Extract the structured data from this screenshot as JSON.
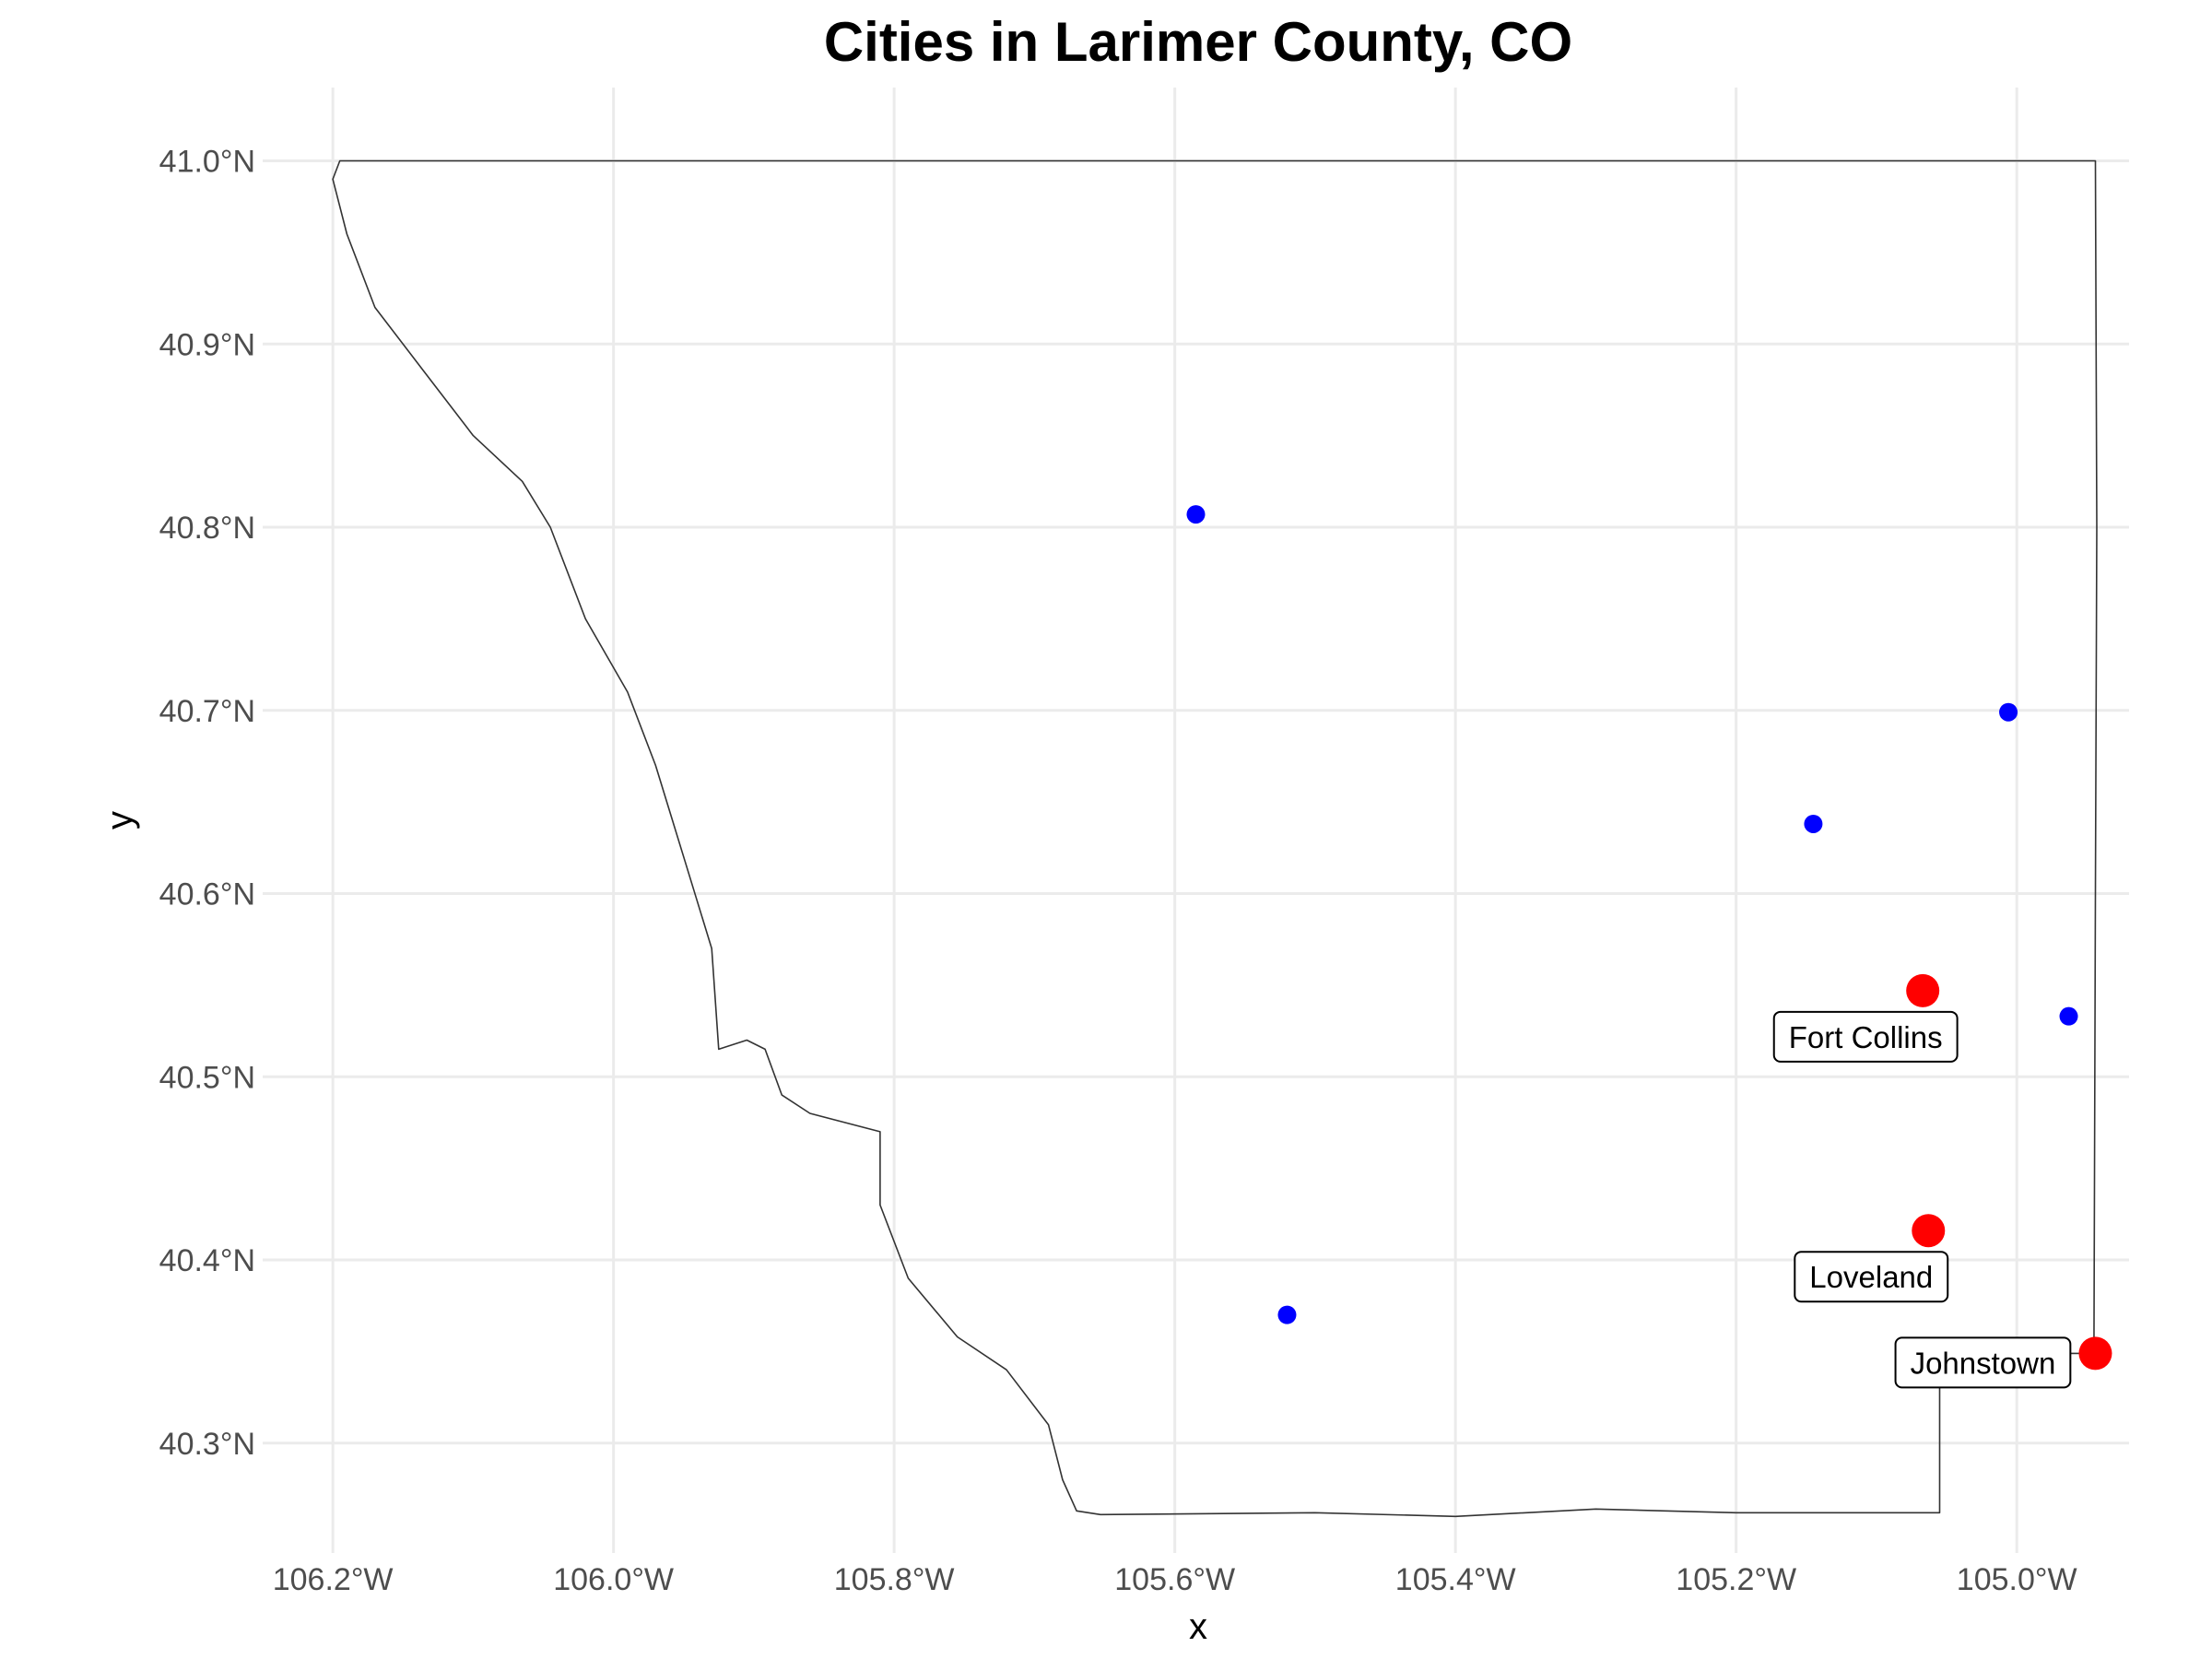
{
  "chart_data": {
    "type": "scatter",
    "title": "Cities in Larimer County, CO",
    "xlabel": "x",
    "ylabel": "y",
    "xlim": [
      -106.25,
      -104.92
    ],
    "ylim": [
      40.24,
      41.04
    ],
    "x_ticks": [
      {
        "value": -106.2,
        "label": "106.2°W"
      },
      {
        "value": -106.0,
        "label": "106.0°W"
      },
      {
        "value": -105.8,
        "label": "105.8°W"
      },
      {
        "value": -105.6,
        "label": "105.6°W"
      },
      {
        "value": -105.4,
        "label": "105.4°W"
      },
      {
        "value": -105.2,
        "label": "105.2°W"
      },
      {
        "value": -105.0,
        "label": "105.0°W"
      }
    ],
    "y_ticks": [
      {
        "value": 40.3,
        "label": "40.3°N"
      },
      {
        "value": 40.4,
        "label": "40.4°N"
      },
      {
        "value": 40.5,
        "label": "40.5°N"
      },
      {
        "value": 40.6,
        "label": "40.6°N"
      },
      {
        "value": 40.7,
        "label": "40.7°N"
      },
      {
        "value": 40.8,
        "label": "40.8°N"
      },
      {
        "value": 40.9,
        "label": "40.9°N"
      },
      {
        "value": 41.0,
        "label": "41.0°N"
      }
    ],
    "grid": true,
    "legend": "none",
    "colors": {
      "small_city": "#0000ff",
      "large_city": "#ff0000",
      "boundary": "#333333"
    },
    "small_cities": [
      {
        "x": -105.585,
        "y": 40.807
      },
      {
        "x": -105.52,
        "y": 40.37
      },
      {
        "x": -105.145,
        "y": 40.638
      },
      {
        "x": -105.006,
        "y": 40.699
      },
      {
        "x": -104.963,
        "y": 40.533
      }
    ],
    "large_cities": [
      {
        "name": "Fort Collins",
        "x": -105.067,
        "y": 40.547
      },
      {
        "name": "Loveland",
        "x": -105.063,
        "y": 40.416
      },
      {
        "name": "Johnstown",
        "x": -104.944,
        "y": 40.349
      }
    ],
    "county_outline": [
      [
        -106.195,
        41.0
      ],
      [
        -105.1,
        41.0
      ],
      [
        -104.944,
        41.0
      ],
      [
        -104.943,
        40.8
      ],
      [
        -104.944,
        40.6
      ],
      [
        -104.945,
        40.349
      ],
      [
        -105.055,
        40.349
      ],
      [
        -105.055,
        40.262
      ],
      [
        -105.2,
        40.262
      ],
      [
        -105.3,
        40.264
      ],
      [
        -105.4,
        40.26
      ],
      [
        -105.5,
        40.262
      ],
      [
        -105.653,
        40.261
      ],
      [
        -105.67,
        40.263
      ],
      [
        -105.68,
        40.28
      ],
      [
        -105.69,
        40.31
      ],
      [
        -105.72,
        40.34
      ],
      [
        -105.755,
        40.358
      ],
      [
        -105.79,
        40.39
      ],
      [
        -105.81,
        40.43
      ],
      [
        -105.81,
        40.47
      ],
      [
        -105.86,
        40.48
      ],
      [
        -105.88,
        40.49
      ],
      [
        -105.892,
        40.515
      ],
      [
        -105.905,
        40.52
      ],
      [
        -105.925,
        40.515
      ],
      [
        -105.93,
        40.57
      ],
      [
        -105.95,
        40.62
      ],
      [
        -105.97,
        40.67
      ],
      [
        -105.99,
        40.71
      ],
      [
        -106.02,
        40.75
      ],
      [
        -106.045,
        40.8
      ],
      [
        -106.065,
        40.825
      ],
      [
        -106.1,
        40.85
      ],
      [
        -106.135,
        40.885
      ],
      [
        -106.17,
        40.92
      ],
      [
        -106.19,
        40.96
      ],
      [
        -106.2,
        40.99
      ],
      [
        -106.195,
        41.0
      ]
    ]
  }
}
